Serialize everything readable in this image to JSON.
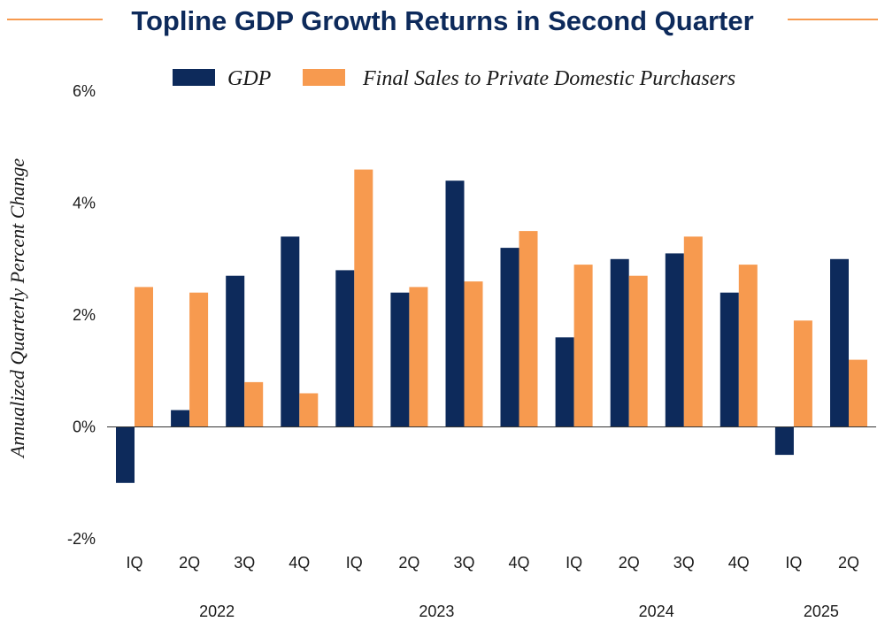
{
  "chart_data": {
    "type": "bar",
    "title": "Topline GDP Growth Returns in Second Quarter",
    "ylabel": "Annualized Quarterly Percent Change",
    "xlabel": "",
    "ylim": [
      -2,
      6
    ],
    "yticks": [
      -2,
      0,
      2,
      4,
      6
    ],
    "ytick_labels": [
      "-2%",
      "0%",
      "2%",
      "4%",
      "6%"
    ],
    "categories": [
      "IQ",
      "2Q",
      "3Q",
      "4Q",
      "IQ",
      "2Q",
      "3Q",
      "4Q",
      "IQ",
      "2Q",
      "3Q",
      "4Q",
      "IQ",
      "2Q"
    ],
    "years": [
      {
        "label": "2022",
        "start": 0,
        "end": 3
      },
      {
        "label": "2023",
        "start": 4,
        "end": 7
      },
      {
        "label": "2024",
        "start": 8,
        "end": 11
      },
      {
        "label": "2025",
        "start": 12,
        "end": 13
      }
    ],
    "series": [
      {
        "name": "GDP",
        "color": "#0d2a5b",
        "values": [
          -1.0,
          0.3,
          2.7,
          3.4,
          2.8,
          2.4,
          4.4,
          3.2,
          1.6,
          3.0,
          3.1,
          2.4,
          -0.5,
          3.0
        ]
      },
      {
        "name": "Final Sales to Private Domestic Purchasers",
        "color": "#f79a4f",
        "values": [
          2.5,
          2.4,
          0.8,
          0.6,
          4.6,
          2.5,
          2.6,
          3.5,
          2.9,
          2.7,
          3.4,
          2.9,
          1.9,
          1.2
        ]
      }
    ],
    "legend": "top",
    "grid": false
  },
  "colors": {
    "title": "#0d2a5b",
    "rule": "#f79a4f",
    "axis": "#333333"
  }
}
